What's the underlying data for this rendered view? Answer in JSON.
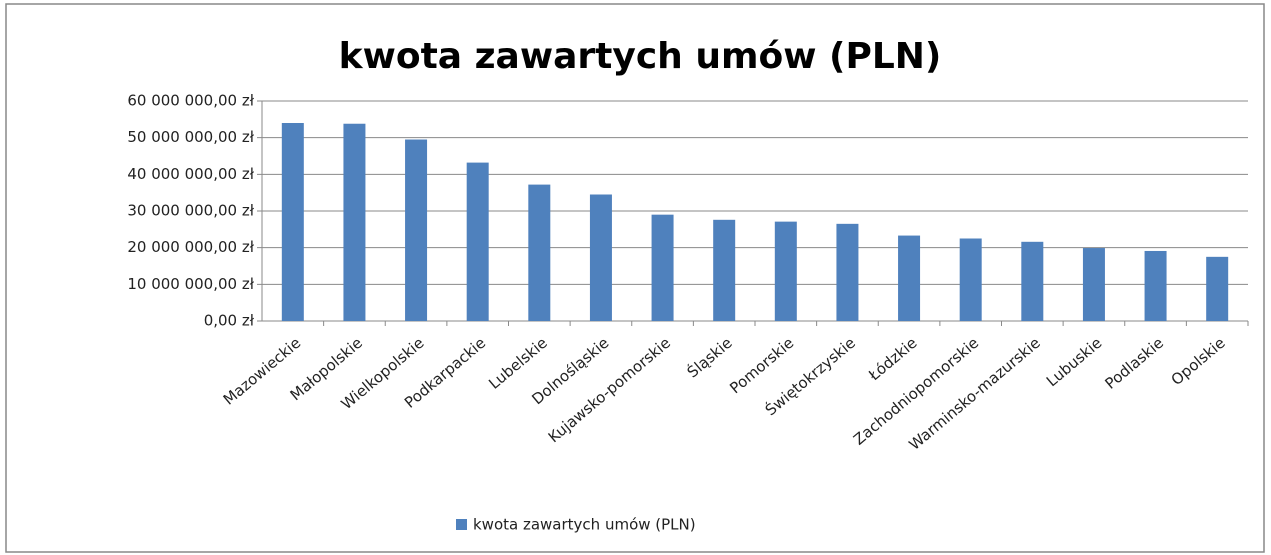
{
  "chart_data": {
    "type": "bar",
    "title": "kwota zawartych umów (PLN)",
    "categories": [
      "Mazowieckie",
      "Małopolskie",
      "Wielkopolskie",
      "Podkarpackie",
      "Lubelskie",
      "Dolnośląskie",
      "Kujawsko-pomorskie",
      "Śląskie",
      "Pomorskie",
      "Świętokrzyskie",
      "Łódzkie",
      "Zachodniopomorskie",
      "Warminsko-mazurskie",
      "Lubuskie",
      "Podlaskie",
      "Opolskie"
    ],
    "series": [
      {
        "name": "kwota zawartych umów (PLN)",
        "color": "#4f81bd",
        "values": [
          54000000,
          53800000,
          49500000,
          43200000,
          37200000,
          34500000,
          29000000,
          27600000,
          27100000,
          26500000,
          23300000,
          22500000,
          21600000,
          19900000,
          19100000,
          17500000
        ]
      }
    ],
    "ylim": [
      0,
      60000000
    ],
    "yticks": [
      {
        "value": 0,
        "label": "0,00 zł"
      },
      {
        "value": 10000000,
        "label": "10 000 000,00 zł"
      },
      {
        "value": 20000000,
        "label": "20 000 000,00 zł"
      },
      {
        "value": 30000000,
        "label": "30 000 000,00 zł"
      },
      {
        "value": 40000000,
        "label": "40 000 000,00 zł"
      },
      {
        "value": 50000000,
        "label": "50 000 000,00 zł"
      },
      {
        "value": 60000000,
        "label": "60 000 000,00 zł"
      }
    ],
    "grid": true,
    "legend": "bottom"
  }
}
